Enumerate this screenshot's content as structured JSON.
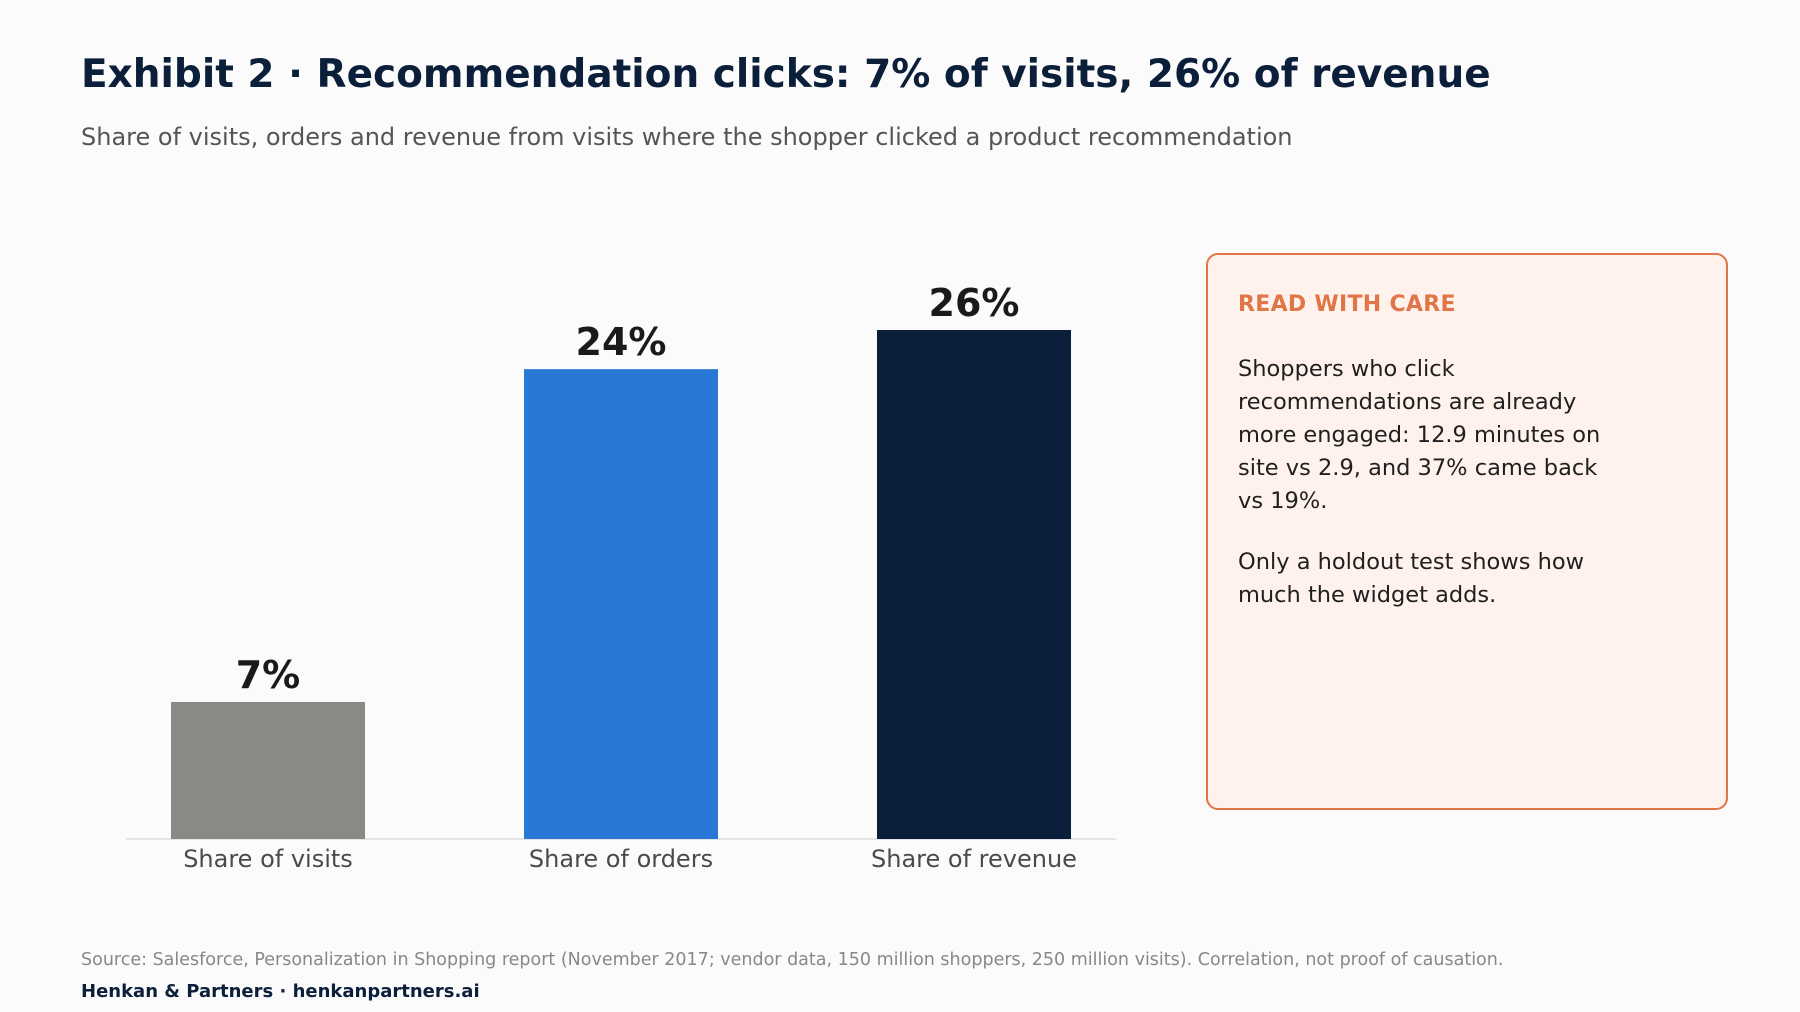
{
  "header": {
    "title": "Exhibit 2 · Recommendation clicks: 7% of visits, 26% of revenue",
    "subtitle": "Share of visits, orders and revenue from visits where the shopper clicked a product recommendation"
  },
  "chart_data": {
    "type": "bar",
    "categories": [
      "Share of visits",
      "Share of orders",
      "Share of revenue"
    ],
    "values": [
      7,
      24,
      26
    ],
    "data_labels": [
      "7%",
      "24%",
      "26%"
    ],
    "colors": [
      "#8a8985",
      "#2a78d6",
      "#0b1f3a"
    ],
    "ylim": [
      0,
      30
    ],
    "grid": false,
    "legend": "none"
  },
  "callout": {
    "heading": "READ WITH CARE",
    "paragraphs": [
      "Shoppers who click recommendations are already more engaged: 12.9 minutes on site vs 2.9, and 37% came back vs 19%.",
      "Only a holdout test shows how much the widget adds."
    ]
  },
  "footer": {
    "source": "Source: Salesforce, Personalization in Shopping report (November 2017; vendor data, 150 million shoppers, 250 million visits). Correlation, not proof of causation.",
    "brand": "Henkan & Partners · henkanpartners.ai"
  }
}
